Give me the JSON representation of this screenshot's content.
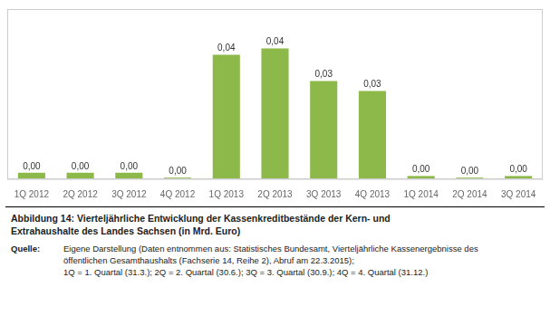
{
  "chart_data": {
    "type": "bar",
    "title": [
      "Abbildung 14: Vierteljährliche Entwicklung der Kassenkreditbestände der Kern- und",
      "Extrahaushalte des Landes Sachsen (in Mrd. Euro)"
    ],
    "annotations": [
      "Quelle:",
      "Eigene Darstellung (Daten entnommen aus: Statistisches Bundesamt, Vierteljährliche Kassenergebnisse des",
      "öffentlichen Gesamthaushalts (Fachserie 14, Reihe 2), Abruf am 22.3.2015);",
      "1Q = 1. Quartal (31.3.); 2Q = 2. Quartal (30.6.); 3Q = 3. Quartal (30.9.); 4Q = 4. Quartal (31.12.)"
    ],
    "categories": [
      "1Q 2012",
      "2Q 2012",
      "3Q 2012",
      "4Q 2012",
      "1Q 2013",
      "2Q 2013",
      "3Q 2013",
      "4Q 2013",
      "1Q 2014",
      "2Q 2014",
      "3Q 2014"
    ],
    "values": [
      0.002,
      0.002,
      0.002,
      0.0005,
      0.038,
      0.04,
      0.03,
      0.027,
      0.001,
      0.0005,
      0.001
    ],
    "value_labels": [
      "0,00",
      "0,00",
      "0,00",
      "0,00",
      "0,04",
      "0,04",
      "0,03",
      "0,03",
      "0,00",
      "0,00",
      "0,00"
    ],
    "color": "#8DB84A",
    "ylim": [
      0,
      0.052
    ],
    "data_labels": true,
    "tick_labels": "x",
    "grid": false
  }
}
